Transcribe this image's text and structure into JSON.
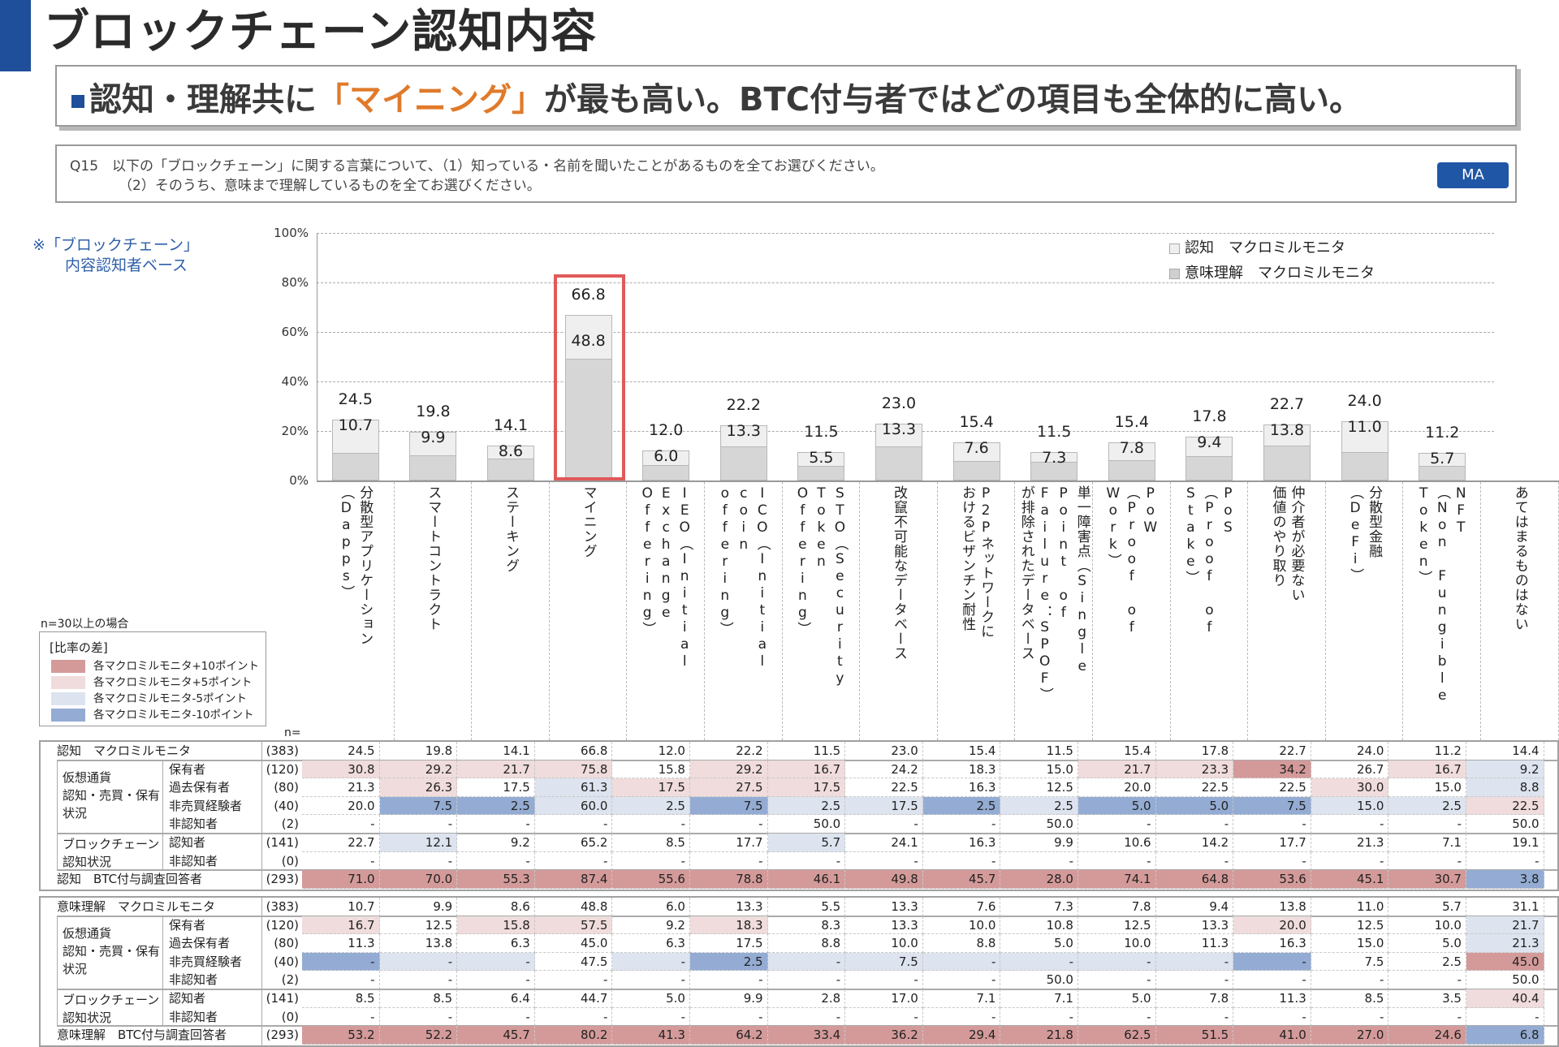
{
  "header": {
    "title": "ブロックチェーン認知内容",
    "subtitle_pre": "認知・理解共に",
    "subtitle_highlight": "「マイニング」",
    "subtitle_post": "が最も高い。BTC付与者ではどの項目も全体的に高い。",
    "accent_color": "#1f4e9a",
    "highlight_color": "#e07a2a"
  },
  "question": {
    "line1": "Q15　以下の「ブロックチェーン」に関する言葉について、（1）知っている・名前を聞いたことがあるものを全てお選びください。",
    "line2": "（2）そのうち、意味まで理解しているものを全てお選びください。",
    "badge": "MA"
  },
  "base_note": {
    "line1": "※「ブロックチェーン」",
    "line2": "内容認知者ベース"
  },
  "chart_data": {
    "type": "bar",
    "title": "ブロックチェーン認知内容",
    "xlabel": "",
    "ylabel": "",
    "ylim": [
      0,
      100
    ],
    "yticks": [
      "100%",
      "80%",
      "60%",
      "40%",
      "20%",
      "0%"
    ],
    "grid": true,
    "legend_position": "top-right",
    "categories": [
      "分散型アプリケーション（Dapps）",
      "スマートコントラクト",
      "ステーキング",
      "マイニング",
      "IEO（Initial Exchange Offering）",
      "ICO（Initial coin offering）",
      "STO（Security Token Offering）",
      "改竄不可能なデータベース",
      "P2Pネットワークにおけるビザンチン耐性",
      "単一障害点（Single Point of Failure：SPOF）が排除されたデータベース",
      "PoW（Proof of Work）",
      "PoS（Proof of Stake）",
      "仲介者が必要ない価値のやり取り",
      "分散型金融（DeFi）",
      "NFT（Non Fungible Token）",
      "あてはまるものはない"
    ],
    "series": [
      {
        "name": "認知　マクロミルモニタ",
        "color": "#efefef",
        "values": [
          24.5,
          19.8,
          14.1,
          66.8,
          12.0,
          22.2,
          11.5,
          23.0,
          15.4,
          11.5,
          15.4,
          17.8,
          22.7,
          24.0,
          11.2,
          null
        ]
      },
      {
        "name": "意味理解　マクロミルモニタ",
        "color": "#d6d6d6",
        "values": [
          10.7,
          9.9,
          8.6,
          48.8,
          6.0,
          13.3,
          5.5,
          13.3,
          7.6,
          7.3,
          7.8,
          9.4,
          13.8,
          11.0,
          5.7,
          null
        ]
      }
    ],
    "annotations": [
      "マイニング highlighted with red box"
    ]
  },
  "category_labels": [
    [
      "分散型アプリケーション",
      "（Dapps）"
    ],
    [
      "スマートコントラクト"
    ],
    [
      "ステーキング"
    ],
    [
      "マイニング"
    ],
    [
      "IEO（Initial",
      "Exchange",
      "Offering）"
    ],
    [
      "ICO（Initial",
      "coin",
      "offering）"
    ],
    [
      "STO（Security",
      "Token",
      "Offering）"
    ],
    [
      "改竄不可能なデータベース"
    ],
    [
      "P2Pネットワークに",
      "おけるビザンチン耐性"
    ],
    [
      "単一障害点（Single",
      "Point of",
      "Failure：SPOF）",
      "が排除されたデータベース"
    ],
    [
      "PoW",
      "（Proof of",
      "Work）"
    ],
    [
      "PoS",
      "（Proof of",
      "Stake）"
    ],
    [
      "仲介者が必要ない",
      "価値のやり取り"
    ],
    [
      "分散型金融",
      "（DeFi）"
    ],
    [
      "NFT",
      "（Non Fungible",
      "Token）"
    ],
    [
      "あてはまるものはない"
    ]
  ],
  "legend": {
    "recognition": "認知　マクロミルモニタ",
    "understanding": "意味理解　マクロミルモニタ"
  },
  "diff_legend": {
    "note": "n=30以上の場合",
    "title": "[比率の差]",
    "items": [
      {
        "label": "各マクロミルモニタ+10ポイント",
        "color": "#d49a9a"
      },
      {
        "label": "各マクロミルモニタ+5ポイント",
        "color": "#f0dcdc"
      },
      {
        "label": "各マクロミルモニタ-5ポイント",
        "color": "#dde4ef"
      },
      {
        "label": "各マクロミルモニタ-10ポイント",
        "color": "#94acd3"
      }
    ]
  },
  "n_header": "n=",
  "tables": [
    {
      "name": "recognition",
      "groups": [
        {
          "label": "仮想通貨\n認知・売買・保有\n状況",
          "rows": [
            1,
            4
          ]
        },
        {
          "label": "ブロックチェーン\n認知状況",
          "rows": [
            5,
            6
          ]
        }
      ],
      "rows": [
        {
          "label": "認知　マクロミルモニタ",
          "sub": "",
          "n": "(383)",
          "values": [
            "24.5",
            "19.8",
            "14.1",
            "66.8",
            "12.0",
            "22.2",
            "11.5",
            "23.0",
            "15.4",
            "11.5",
            "15.4",
            "17.8",
            "22.7",
            "24.0",
            "11.2",
            "14.4"
          ],
          "colors": [
            "",
            "",
            "",
            "",
            "",
            "",
            "",
            "",
            "",
            "",
            "",
            "",
            "",
            "",
            "",
            ""
          ]
        },
        {
          "label": "",
          "sub": "保有者",
          "n": "(120)",
          "values": [
            "30.8",
            "29.2",
            "21.7",
            "75.8",
            "15.8",
            "29.2",
            "16.7",
            "24.2",
            "18.3",
            "15.0",
            "21.7",
            "23.3",
            "34.2",
            "26.7",
            "16.7",
            "9.2"
          ],
          "colors": [
            "p5",
            "p5",
            "p5",
            "p5",
            "",
            "p5",
            "p5",
            "",
            "",
            "",
            "p5",
            "p5",
            "p10",
            "",
            "p5",
            "m5"
          ]
        },
        {
          "label": "",
          "sub": "過去保有者",
          "n": "(80)",
          "values": [
            "21.3",
            "26.3",
            "17.5",
            "61.3",
            "17.5",
            "27.5",
            "17.5",
            "22.5",
            "16.3",
            "12.5",
            "20.0",
            "22.5",
            "22.5",
            "30.0",
            "15.0",
            "8.8"
          ],
          "colors": [
            "",
            "p5",
            "",
            "m5",
            "p5",
            "p5",
            "p5",
            "",
            "",
            "",
            "",
            "",
            "",
            "p5",
            "",
            "m5"
          ]
        },
        {
          "label": "",
          "sub": "非売買経験者",
          "n": "(40)",
          "values": [
            "20.0",
            "7.5",
            "2.5",
            "60.0",
            "2.5",
            "7.5",
            "2.5",
            "17.5",
            "2.5",
            "2.5",
            "5.0",
            "5.0",
            "7.5",
            "15.0",
            "2.5",
            "22.5"
          ],
          "colors": [
            "",
            "m10",
            "m10",
            "m5",
            "m5",
            "m10",
            "m5",
            "m5",
            "m10",
            "m5",
            "m10",
            "m10",
            "m10",
            "m5",
            "m5",
            "p5"
          ]
        },
        {
          "label": "",
          "sub": "非認知者",
          "n": "(2)",
          "values": [
            "-",
            "-",
            "-",
            "-",
            "-",
            "-",
            "50.0",
            "-",
            "-",
            "50.0",
            "-",
            "-",
            "-",
            "-",
            "-",
            "50.0"
          ],
          "colors": [
            "",
            "",
            "",
            "",
            "",
            "",
            "",
            "",
            "",
            "",
            "",
            "",
            "",
            "",
            "",
            ""
          ]
        },
        {
          "label": "",
          "sub": "認知者",
          "n": "(141)",
          "values": [
            "22.7",
            "12.1",
            "9.2",
            "65.2",
            "8.5",
            "17.7",
            "5.7",
            "24.1",
            "16.3",
            "9.9",
            "10.6",
            "14.2",
            "17.7",
            "21.3",
            "7.1",
            "19.1"
          ],
          "colors": [
            "",
            "m5",
            "",
            "",
            "",
            "",
            "m5",
            "",
            "",
            "",
            "",
            "",
            "",
            "",
            "",
            ""
          ]
        },
        {
          "label": "",
          "sub": "非認知者",
          "n": "(0)",
          "values": [
            "-",
            "-",
            "-",
            "-",
            "-",
            "-",
            "-",
            "-",
            "-",
            "-",
            "-",
            "-",
            "-",
            "-",
            "-",
            "-"
          ],
          "colors": [
            "",
            "",
            "",
            "",
            "",
            "",
            "",
            "",
            "",
            "",
            "",
            "",
            "",
            "",
            "",
            ""
          ]
        },
        {
          "label": "認知　BTC付与調査回答者",
          "sub": "",
          "n": "(293)",
          "values": [
            "71.0",
            "70.0",
            "55.3",
            "87.4",
            "55.6",
            "78.8",
            "46.1",
            "49.8",
            "45.7",
            "28.0",
            "74.1",
            "64.8",
            "53.6",
            "45.1",
            "30.7",
            "3.8"
          ],
          "colors": [
            "p10",
            "p10",
            "p10",
            "p10",
            "p10",
            "p10",
            "p10",
            "p10",
            "p10",
            "p10",
            "p10",
            "p10",
            "p10",
            "p10",
            "p10",
            "m10"
          ]
        }
      ]
    },
    {
      "name": "understanding",
      "groups": [
        {
          "label": "仮想通貨\n認知・売買・保有\n状況",
          "rows": [
            1,
            4
          ]
        },
        {
          "label": "ブロックチェーン\n認知状況",
          "rows": [
            5,
            6
          ]
        }
      ],
      "rows": [
        {
          "label": "意味理解　マクロミルモニタ",
          "sub": "",
          "n": "(383)",
          "values": [
            "10.7",
            "9.9",
            "8.6",
            "48.8",
            "6.0",
            "13.3",
            "5.5",
            "13.3",
            "7.6",
            "7.3",
            "7.8",
            "9.4",
            "13.8",
            "11.0",
            "5.7",
            "31.1"
          ],
          "colors": [
            "",
            "",
            "",
            "",
            "",
            "",
            "",
            "",
            "",
            "",
            "",
            "",
            "",
            "",
            "",
            ""
          ]
        },
        {
          "label": "",
          "sub": "保有者",
          "n": "(120)",
          "values": [
            "16.7",
            "12.5",
            "15.8",
            "57.5",
            "9.2",
            "18.3",
            "8.3",
            "13.3",
            "10.0",
            "10.8",
            "12.5",
            "13.3",
            "20.0",
            "12.5",
            "10.0",
            "21.7"
          ],
          "colors": [
            "p5",
            "",
            "p5",
            "p5",
            "",
            "p5",
            "",
            "",
            "",
            "",
            "",
            "",
            "p5",
            "",
            "",
            "m5"
          ]
        },
        {
          "label": "",
          "sub": "過去保有者",
          "n": "(80)",
          "values": [
            "11.3",
            "13.8",
            "6.3",
            "45.0",
            "6.3",
            "17.5",
            "8.8",
            "10.0",
            "8.8",
            "5.0",
            "10.0",
            "11.3",
            "16.3",
            "15.0",
            "5.0",
            "21.3"
          ],
          "colors": [
            "",
            "",
            "",
            "",
            "",
            "",
            "",
            "",
            "",
            "",
            "",
            "",
            "",
            "",
            "",
            "m5"
          ]
        },
        {
          "label": "",
          "sub": "非売買経験者",
          "n": "(40)",
          "values": [
            "-",
            "-",
            "-",
            "47.5",
            "-",
            "2.5",
            "-",
            "7.5",
            "-",
            "-",
            "-",
            "-",
            "-",
            "7.5",
            "2.5",
            "45.0"
          ],
          "colors": [
            "m10",
            "m5",
            "m5",
            "",
            "m5",
            "m10",
            "m5",
            "m5",
            "m5",
            "m5",
            "m5",
            "m5",
            "m10",
            "",
            "",
            "p10"
          ]
        },
        {
          "label": "",
          "sub": "非認知者",
          "n": "(2)",
          "values": [
            "-",
            "-",
            "-",
            "-",
            "-",
            "-",
            "-",
            "-",
            "-",
            "50.0",
            "-",
            "-",
            "-",
            "-",
            "-",
            "50.0"
          ],
          "colors": [
            "",
            "",
            "",
            "",
            "",
            "",
            "",
            "",
            "",
            "",
            "",
            "",
            "",
            "",
            "",
            ""
          ]
        },
        {
          "label": "",
          "sub": "認知者",
          "n": "(141)",
          "values": [
            "8.5",
            "8.5",
            "6.4",
            "44.7",
            "5.0",
            "9.9",
            "2.8",
            "17.0",
            "7.1",
            "7.1",
            "5.0",
            "7.8",
            "11.3",
            "8.5",
            "3.5",
            "40.4"
          ],
          "colors": [
            "",
            "",
            "",
            "",
            "",
            "",
            "",
            "",
            "",
            "",
            "",
            "",
            "",
            "",
            "",
            "p5"
          ]
        },
        {
          "label": "",
          "sub": "非認知者",
          "n": "(0)",
          "values": [
            "-",
            "-",
            "-",
            "-",
            "-",
            "-",
            "-",
            "-",
            "-",
            "-",
            "-",
            "-",
            "-",
            "-",
            "-",
            "-"
          ],
          "colors": [
            "",
            "",
            "",
            "",
            "",
            "",
            "",
            "",
            "",
            "",
            "",
            "",
            "",
            "",
            "",
            ""
          ]
        },
        {
          "label": "意味理解　BTC付与調査回答者",
          "sub": "",
          "n": "(293)",
          "values": [
            "53.2",
            "52.2",
            "45.7",
            "80.2",
            "41.3",
            "64.2",
            "33.4",
            "36.2",
            "29.4",
            "21.8",
            "62.5",
            "51.5",
            "41.0",
            "27.0",
            "24.6",
            "6.8"
          ],
          "colors": [
            "p10",
            "p10",
            "p10",
            "p10",
            "p10",
            "p10",
            "p10",
            "p10",
            "p10",
            "p10",
            "p10",
            "p10",
            "p10",
            "p10",
            "p10",
            "m10"
          ]
        }
      ]
    }
  ]
}
